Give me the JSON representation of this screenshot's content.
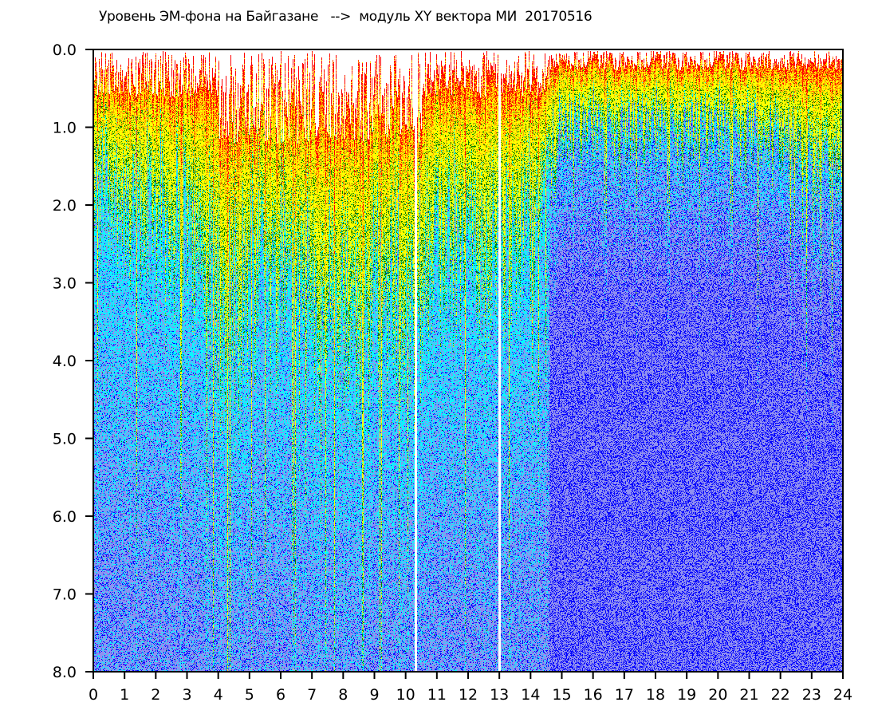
{
  "chart_data": {
    "type": "heatmap",
    "title": "Уровень ЭМ-фона на Байгазане   -->  модуль XY вектора МИ  20170516",
    "xlabel": "",
    "ylabel": "",
    "xlim": [
      0,
      24
    ],
    "ylim": [
      8,
      0
    ],
    "y_inverted": true,
    "x_ticks": [
      "0",
      "1",
      "2",
      "3",
      "4",
      "5",
      "6",
      "7",
      "8",
      "9",
      "10",
      "11",
      "12",
      "13",
      "14",
      "15",
      "16",
      "17",
      "18",
      "19",
      "20",
      "21",
      "22",
      "23",
      "24"
    ],
    "y_ticks": [
      "0.0",
      "1.0",
      "2.0",
      "3.0",
      "4.0",
      "5.0",
      "6.0",
      "7.0",
      "8.0"
    ],
    "colorscale": [
      "#ff0000",
      "#ffa500",
      "#ffff00",
      "#008000",
      "#00ffff",
      "#9090f0",
      "#0000ff"
    ],
    "high_level_band_depth_by_hour": [
      1.6,
      1.7,
      1.8,
      1.9,
      3.0,
      2.6,
      2.2,
      2.4,
      2.8,
      2.6,
      2.6,
      2.4,
      2.2,
      2.3,
      2.0,
      0.9,
      0.9,
      0.9,
      0.9,
      0.9,
      0.9,
      0.9,
      1.0,
      1.3,
      1.3
    ],
    "data_gaps_hours": [
      10.3,
      13.0
    ],
    "grid": false,
    "legend": "none"
  }
}
